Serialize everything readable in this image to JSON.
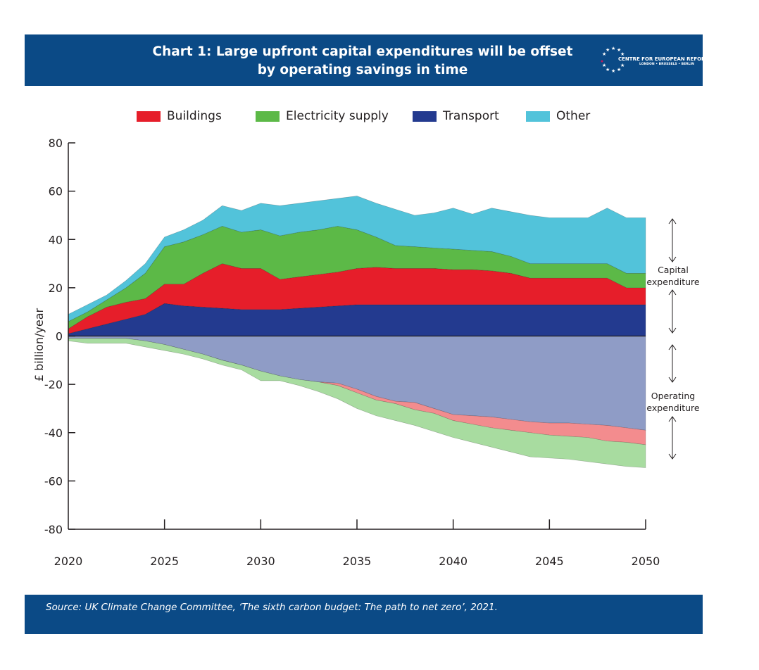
{
  "header": {
    "title_line1": "Chart 1: Large upfront capital expenditures will be offset",
    "title_line2": "by operating savings in time",
    "logo_name": "CENTRE FOR EUROPEAN REFORM",
    "logo_cities": "LONDON • BRUSSELS • BERLIN"
  },
  "footer": {
    "source": "Source: UK Climate Change Committee, ‘The sixth carbon budget: The path to net zero’, 2021."
  },
  "annotations": {
    "capital_line1": "Capital",
    "capital_line2": "expenditure",
    "operating_line1": "Operating",
    "operating_line2": "expenditure"
  },
  "colors": {
    "header": "#0b4a86",
    "buildings": "#e61e2a",
    "electricity": "#5cb947",
    "transport": "#233a8f",
    "other": "#52c3da",
    "transport_op": "#8f9cc6",
    "buildings_op": "#f38c8e",
    "electricity_op": "#a8dca0"
  },
  "chart_data": {
    "type": "area",
    "stacked": true,
    "title": "Chart 1: Large upfront capital expenditures will be offset by operating savings in time",
    "xlabel": "",
    "ylabel": "£ billion/year",
    "xlim": [
      2020,
      2050
    ],
    "ylim": [
      -80,
      80
    ],
    "x_ticks": [
      "2020",
      "2025",
      "2030",
      "2035",
      "2040",
      "2045",
      "2050"
    ],
    "y_ticks": [
      "80",
      "60",
      "40",
      "20",
      "0",
      "-20",
      "-40",
      "-60",
      "-80"
    ],
    "legend": [
      "Buildings",
      "Electricity supply",
      "Transport",
      "Other"
    ],
    "legend_placement": "top",
    "x": [
      2020,
      2021,
      2022,
      2023,
      2024,
      2025,
      2026,
      2027,
      2028,
      2029,
      2030,
      2031,
      2032,
      2033,
      2034,
      2035,
      2036,
      2037,
      2038,
      2039,
      2040,
      2041,
      2042,
      2043,
      2044,
      2045,
      2046,
      2047,
      2048,
      2049,
      2050
    ],
    "capital_series": [
      {
        "name": "Transport",
        "color_key": "transport",
        "values": [
          1,
          3,
          5,
          7,
          9,
          13.5,
          12.5,
          12,
          11.5,
          11,
          11,
          11,
          11.5,
          12,
          12.5,
          13,
          13,
          13,
          13,
          13,
          13,
          13,
          13,
          13,
          13,
          13,
          13,
          13,
          13,
          13,
          13
        ]
      },
      {
        "name": "Buildings",
        "color_key": "buildings",
        "values": [
          2,
          5,
          7,
          7,
          6.5,
          8,
          9,
          14,
          18.5,
          17,
          17,
          12.5,
          13,
          13.5,
          14,
          15,
          15.5,
          15,
          15,
          15,
          14.5,
          14.5,
          14,
          13,
          11,
          11,
          11,
          11,
          11,
          7,
          7
        ]
      },
      {
        "name": "Electricity supply",
        "color_key": "electricity",
        "values": [
          3,
          2,
          3,
          6,
          10.5,
          15.5,
          17.5,
          16,
          15.5,
          15,
          16,
          18,
          18.5,
          18.5,
          19,
          16,
          12.5,
          9.5,
          9,
          8.5,
          8.5,
          8,
          8,
          7,
          6,
          6,
          6,
          6,
          6,
          6,
          6
        ]
      },
      {
        "name": "Other",
        "color_key": "other",
        "values": [
          3,
          3,
          2,
          3,
          4,
          4,
          5,
          6,
          8.5,
          9,
          11,
          12.5,
          12,
          12,
          11.5,
          14,
          14,
          15,
          13,
          14.5,
          17,
          15,
          18,
          18.5,
          20,
          19,
          19,
          19,
          23,
          23,
          23
        ]
      }
    ],
    "operating_series": [
      {
        "name": "Transport (operating)",
        "color_key": "transport_op",
        "values": [
          -1,
          -1,
          -1,
          -1,
          -2,
          -3.5,
          -5.5,
          -7.5,
          -10,
          -12,
          -14.5,
          -16.5,
          -18,
          -19,
          -19.5,
          -22,
          -25,
          -27,
          -27.5,
          -30,
          -32.5,
          -33,
          -33.5,
          -34.5,
          -35.5,
          -36,
          -36,
          -36.5,
          -37,
          -38,
          -39
        ]
      },
      {
        "name": "Buildings (operating)",
        "color_key": "buildings_op",
        "values": [
          0,
          0,
          0,
          0,
          0,
          0,
          0,
          0,
          0,
          0,
          0,
          0,
          0,
          0,
          -1,
          -1.5,
          -1.5,
          -1,
          -3,
          -2,
          -2.5,
          -3.5,
          -4.5,
          -4.5,
          -4.5,
          -5,
          -5.5,
          -5.5,
          -6.5,
          -6,
          -6
        ]
      },
      {
        "name": "Electricity supply (operating)",
        "color_key": "electricity_op",
        "values": [
          -1,
          -2,
          -2,
          -2,
          -2.5,
          -2.5,
          -2,
          -2,
          -2,
          -2,
          -4,
          -2,
          -2.5,
          -4,
          -5.5,
          -6.5,
          -6.5,
          -7,
          -6.5,
          -7.5,
          -7,
          -7.5,
          -8,
          -9,
          -10,
          -9.5,
          -9.5,
          -10,
          -9.5,
          -10,
          -9.5
        ]
      }
    ]
  }
}
